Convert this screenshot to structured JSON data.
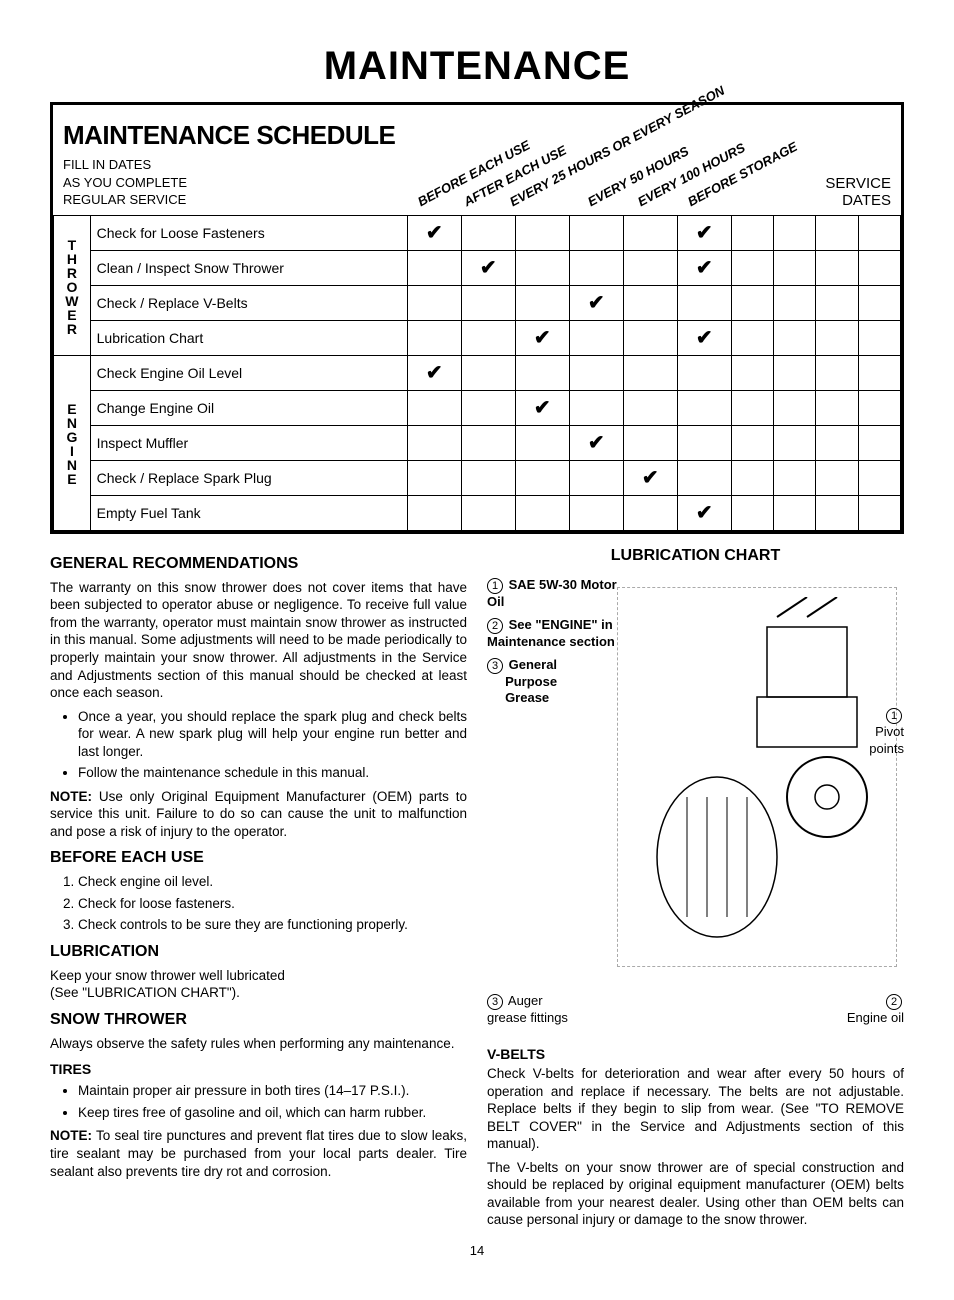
{
  "page": {
    "title": "MAINTENANCE",
    "number": "14"
  },
  "schedule": {
    "title": "MAINTENANCE SCHEDULE",
    "subtitle_l1": "FILL IN DATES",
    "subtitle_l2": "AS YOU COMPLETE",
    "subtitle_l3": "REGULAR SERVICE",
    "service_dates_l1": "SERVICE",
    "service_dates_l2": "DATES",
    "columns": [
      "BEFORE EACH USE",
      "AFTER EACH USE",
      "EVERY 25 HOURS OR EVERY SEASON",
      "EVERY 50 HOURS",
      "EVERY 100 HOURS",
      "BEFORE STORAGE"
    ],
    "groups": [
      {
        "label": "THROWER",
        "rows": [
          {
            "task": "Check for Loose Fasteners",
            "checks": [
              true,
              false,
              false,
              false,
              false,
              true
            ]
          },
          {
            "task": "Clean / Inspect Snow Thrower",
            "checks": [
              false,
              true,
              false,
              false,
              false,
              true
            ]
          },
          {
            "task": "Check / Replace V-Belts",
            "checks": [
              false,
              false,
              false,
              true,
              false,
              false
            ]
          },
          {
            "task": "Lubrication Chart",
            "checks": [
              false,
              false,
              true,
              false,
              false,
              true
            ]
          }
        ]
      },
      {
        "label": "ENGINE",
        "rows": [
          {
            "task": "Check Engine Oil Level",
            "checks": [
              true,
              false,
              false,
              false,
              false,
              false
            ]
          },
          {
            "task": "Change Engine Oil",
            "checks": [
              false,
              false,
              true,
              false,
              false,
              false
            ]
          },
          {
            "task": "Inspect Muffler",
            "checks": [
              false,
              false,
              false,
              true,
              false,
              false
            ]
          },
          {
            "task": "Check / Replace Spark Plug",
            "checks": [
              false,
              false,
              false,
              false,
              true,
              false
            ]
          },
          {
            "task": "Empty Fuel Tank",
            "checks": [
              false,
              false,
              false,
              false,
              false,
              true
            ]
          }
        ]
      }
    ]
  },
  "left": {
    "h_general": "GENERAL RECOMMENDATIONS",
    "p_general": "The warranty on this snow thrower does not cover items that have been subjected to operator abuse or negligence. To receive full value from the warranty, operator must maintain snow thrower as instructed in this manual. Some adjustments will need to be made periodically to properly maintain your snow thrower. All adjustments in the Service and Adjustments section of this manual should be checked at least once each season.",
    "bullets_general": [
      "Once a year, you should replace the spark plug and check belts for wear. A new spark plug will help your engine run better and last longer.",
      "Follow the maintenance schedule in this manual."
    ],
    "note_general": "NOTE: Use only Original Equipment Manufacturer (OEM) parts to service this unit. Failure to do so can cause the unit to malfunction and pose a risk of injury to the operator.",
    "h_before": "BEFORE EACH USE",
    "list_before": [
      "Check engine oil level.",
      "Check for loose fasteners.",
      "Check controls to be sure they are functioning properly."
    ],
    "h_lub": "LUBRICATION",
    "p_lub1": "Keep your snow thrower well lubricated",
    "p_lub2": "(See \"LUBRICATION CHART\").",
    "h_snow": "SNOW THROWER",
    "p_snow": "Always observe the safety rules when performing any maintenance.",
    "h_tires": "TIRES",
    "bullets_tires": [
      "Maintain proper air pressure in both tires (14–17 P.S.I.).",
      "Keep tires free of gasoline and oil, which can harm rubber."
    ],
    "note_tires": "NOTE: To seal tire punctures and prevent flat tires due to slow leaks, tire sealant may be purchased from your local parts dealer. Tire sealant also prevents tire dry rot and corrosion."
  },
  "right": {
    "h_chart": "LUBRICATION CHART",
    "legend1": "SAE 5W-30 Motor Oil",
    "legend2": "See \"ENGINE\" in Maintenance section",
    "legend3_l1": "General",
    "legend3_l2": "Purpose",
    "legend3_l3": "Grease",
    "callout_pivot_l1": "Pivot",
    "callout_pivot_l2": "points",
    "callout_auger_l1": "Auger",
    "callout_auger_l2": "grease fittings",
    "callout_engine": "Engine oil",
    "h_vbelts": "V-BELTS",
    "p_vbelts1": "Check V-belts for deterioration and wear after every 50 hours of operation and replace if necessary. The belts are not adjustable. Replace belts if they begin to slip from wear. (See \"TO REMOVE BELT COVER\" in the Service and Adjustments section of this manual).",
    "p_vbelts2": "The V-belts on your snow thrower are of special construction and should be replaced by original equipment manufacturer (OEM) belts available from your nearest dealer. Using other than OEM belts can cause personal injury or damage to the snow thrower."
  }
}
